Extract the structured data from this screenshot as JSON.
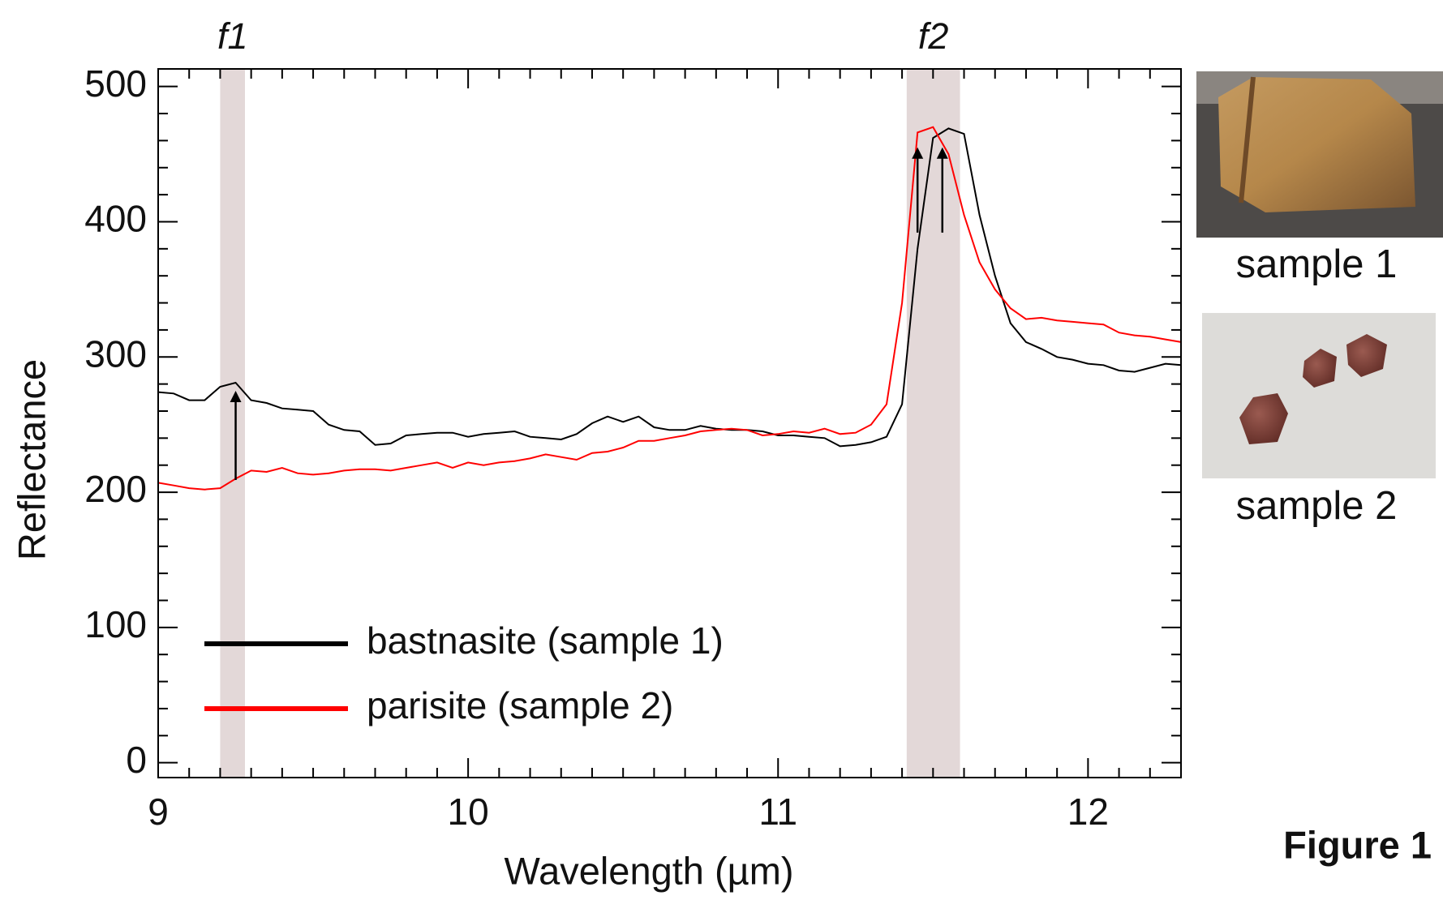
{
  "chart_data": {
    "type": "line",
    "annotations": [
      "f1",
      "f2"
    ],
    "xlabel": "Wavelength (µm)",
    "ylabel": "Reflectance",
    "xlim": [
      9,
      12.3
    ],
    "ylim": [
      -11,
      513
    ],
    "xticks": [
      9,
      10,
      11,
      12
    ],
    "yticks": [
      0,
      100,
      200,
      300,
      400,
      500
    ],
    "xminorticks": [
      9.1,
      9.2,
      9.3,
      9.4,
      9.5,
      9.6,
      9.7,
      9.8,
      9.9,
      10.1,
      10.2,
      10.3,
      10.4,
      10.5,
      10.6,
      10.7,
      10.8,
      10.9,
      11.1,
      11.2,
      11.3,
      11.4,
      11.5,
      11.6,
      11.7,
      11.8,
      11.9,
      12.1,
      12.2
    ],
    "yminorticks": [
      20,
      40,
      60,
      80,
      120,
      140,
      160,
      180,
      220,
      240,
      260,
      280,
      320,
      340,
      360,
      380,
      420,
      440,
      460,
      480
    ],
    "bands": [
      {
        "label": "f1",
        "xlim": [
          9.2,
          9.28
        ]
      },
      {
        "label": "f2",
        "xlim": [
          11.415,
          11.587
        ]
      }
    ],
    "arrows": [
      {
        "x": 9.25,
        "y": [
          209,
          275
        ]
      },
      {
        "x": 11.45,
        "y": [
          392,
          455
        ]
      },
      {
        "x": 11.53,
        "y": [
          392,
          455
        ]
      }
    ],
    "x": [
      9.0,
      9.05,
      9.1,
      9.15,
      9.2,
      9.25,
      9.3,
      9.35,
      9.4,
      9.45,
      9.5,
      9.55,
      9.6,
      9.65,
      9.7,
      9.75,
      9.8,
      9.85,
      9.9,
      9.95,
      10.0,
      10.05,
      10.1,
      10.15,
      10.2,
      10.25,
      10.3,
      10.35,
      10.4,
      10.45,
      10.5,
      10.55,
      10.6,
      10.65,
      10.7,
      10.75,
      10.8,
      10.85,
      10.9,
      10.95,
      11.0,
      11.05,
      11.1,
      11.15,
      11.2,
      11.25,
      11.3,
      11.35,
      11.4,
      11.45,
      11.5,
      11.55,
      11.6,
      11.65,
      11.7,
      11.75,
      11.8,
      11.85,
      11.9,
      11.95,
      12.0,
      12.05,
      12.1,
      12.15,
      12.2,
      12.25,
      12.3
    ],
    "series": [
      {
        "name": "bastnasite (sample 1)",
        "color": "#000000",
        "values": [
          274,
          273,
          268,
          268,
          278,
          281,
          268,
          266,
          262,
          261,
          260,
          250,
          246,
          245,
          235,
          236,
          242,
          243,
          244,
          244,
          241,
          243,
          244,
          245,
          241,
          240,
          239,
          243,
          251,
          256,
          252,
          256,
          248,
          246,
          246,
          249,
          247,
          246,
          246,
          245,
          242,
          242,
          241,
          240,
          234,
          235,
          237,
          241,
          265,
          380,
          462,
          469,
          465,
          405,
          360,
          325,
          311,
          306,
          300,
          298,
          295,
          294,
          290,
          289,
          292,
          295,
          294
        ]
      },
      {
        "name": "parisite (sample 2)",
        "color": "#ff0000",
        "values": [
          207,
          205,
          203,
          202,
          203,
          210,
          216,
          215,
          218,
          214,
          213,
          214,
          216,
          217,
          217,
          216,
          218,
          220,
          222,
          218,
          222,
          220,
          222,
          223,
          225,
          228,
          226,
          224,
          229,
          230,
          233,
          238,
          238,
          240,
          242,
          245,
          246,
          247,
          246,
          242,
          243,
          245,
          244,
          247,
          243,
          244,
          250,
          265,
          340,
          466,
          470,
          450,
          405,
          370,
          350,
          336,
          328,
          329,
          327,
          326,
          325,
          324,
          318,
          316,
          315,
          313,
          311
        ]
      }
    ]
  },
  "samples": [
    "sample 1",
    "sample 2"
  ],
  "figure_label": "Figure 1"
}
